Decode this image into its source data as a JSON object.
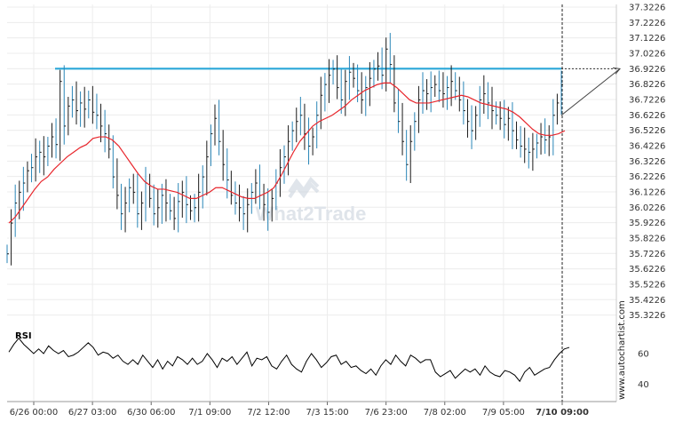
{
  "watermark": "What2Trade",
  "side_watermark": "www.autochartist.com",
  "rsi_label": "RSI",
  "chart_data": {
    "type": "line",
    "ylim": [
      35.28,
      37.34
    ],
    "y_ticks": [
      "37.3226",
      "37.2226",
      "37.1226",
      "37.0226",
      "36.9226",
      "36.8226",
      "36.7226",
      "36.6226",
      "36.5226",
      "36.4226",
      "36.3226",
      "36.2226",
      "36.1226",
      "36.0226",
      "35.9226",
      "35.8226",
      "35.7226",
      "35.6226",
      "35.5226",
      "35.4226",
      "35.3226"
    ],
    "x_ticks": [
      "6/26 00:00",
      "6/27 03:00",
      "6/30 06:00",
      "7/1 09:00",
      "7/2 12:00",
      "7/3 15:00",
      "7/6 23:00",
      "7/8 02:00",
      "7/9 05:00",
      "7/10 09:00"
    ],
    "resistance_level": 36.9226,
    "forecast_target": 36.9226,
    "rsi_ylim": [
      30,
      75
    ],
    "rsi_ticks": [
      "60",
      "40"
    ],
    "close": [
      35.72,
      35.92,
      36.05,
      36.12,
      36.18,
      36.26,
      36.28,
      36.35,
      36.38,
      36.35,
      36.42,
      36.48,
      36.43,
      36.84,
      36.55,
      36.68,
      36.72,
      36.65,
      36.7,
      36.66,
      36.72,
      36.64,
      36.62,
      36.55,
      36.5,
      36.4,
      36.22,
      36.1,
      35.98,
      36.05,
      36.15,
      36.12,
      35.98,
      36.05,
      36.18,
      36.08,
      35.98,
      36.02,
      36.1,
      36.05,
      36.0,
      35.95,
      36.06,
      36.12,
      36.04,
      36.0,
      36.02,
      36.12,
      36.22,
      36.35,
      36.5,
      36.6,
      36.45,
      36.3,
      36.2,
      36.1,
      36.05,
      36.02,
      35.98,
      36.04,
      36.12,
      36.18,
      36.1,
      36.04,
      35.99,
      36.08,
      36.18,
      36.28,
      36.35,
      36.45,
      36.52,
      36.58,
      36.62,
      36.5,
      36.42,
      36.48,
      36.62,
      36.75,
      36.82,
      36.88,
      36.92,
      36.8,
      36.72,
      36.84,
      36.9,
      36.86,
      36.78,
      36.72,
      36.8,
      36.86,
      36.92,
      36.94,
      36.88,
      37.05,
      36.95,
      36.7,
      36.58,
      36.45,
      36.3,
      36.45,
      36.58,
      36.72,
      36.78,
      36.76,
      36.8,
      36.82,
      36.78,
      36.76,
      36.8,
      36.84,
      36.78,
      36.72,
      36.65,
      36.58,
      36.52,
      36.62,
      36.72,
      36.76,
      36.7,
      36.65,
      36.62,
      36.6,
      36.56,
      36.6,
      36.52,
      36.46,
      36.42,
      36.4,
      36.38,
      36.4,
      36.44,
      36.48,
      36.46,
      36.48,
      36.62,
      36.7,
      36.82
    ],
    "sma": [
      35.92,
      35.96,
      36.02,
      36.08,
      36.14,
      36.19,
      36.22,
      36.27,
      36.31,
      36.35,
      36.38,
      36.41,
      36.43,
      36.47,
      36.48,
      36.48,
      36.46,
      36.42,
      36.36,
      36.3,
      36.24,
      36.19,
      36.16,
      36.14,
      36.14,
      36.13,
      36.12,
      36.1,
      36.08,
      36.08,
      36.1,
      36.12,
      36.15,
      36.15,
      36.13,
      36.11,
      36.09,
      36.08,
      36.08,
      36.1,
      36.12,
      36.15,
      36.22,
      36.3,
      36.38,
      36.45,
      36.5,
      36.55,
      36.58,
      36.6,
      36.62,
      36.65,
      36.68,
      36.72,
      36.75,
      36.78,
      36.8,
      36.82,
      36.83,
      36.83,
      36.8,
      36.76,
      36.72,
      36.7,
      36.7,
      36.7,
      36.71,
      36.72,
      36.73,
      36.74,
      36.75,
      36.74,
      36.72,
      36.7,
      36.69,
      36.68,
      36.67,
      36.66,
      36.64,
      36.61,
      36.57,
      36.53,
      36.5,
      36.49,
      36.49,
      36.5,
      36.52
    ],
    "rsi": [
      61,
      66,
      70,
      66,
      63,
      60,
      63,
      60,
      65,
      62,
      60,
      62,
      58,
      59,
      61,
      64,
      67,
      64,
      59,
      61,
      60,
      57,
      59,
      55,
      53,
      56,
      53,
      59,
      55,
      51,
      56,
      50,
      55,
      52,
      58,
      56,
      53,
      57,
      53,
      55,
      60,
      56,
      51,
      57,
      55,
      58,
      53,
      57,
      61,
      52,
      57,
      56,
      58,
      52,
      50,
      55,
      59,
      53,
      50,
      48,
      55,
      60,
      56,
      51,
      54,
      58,
      59,
      53,
      55,
      51,
      52,
      49,
      47,
      50,
      46,
      52,
      56,
      53,
      59,
      55,
      52,
      59,
      57,
      54,
      56,
      56,
      48,
      45,
      47,
      49,
      44,
      47,
      50,
      48,
      50,
      46,
      52,
      48,
      46,
      45,
      49,
      48,
      46,
      42,
      48,
      51,
      46,
      48,
      50,
      51,
      56,
      60,
      63,
      64
    ]
  }
}
